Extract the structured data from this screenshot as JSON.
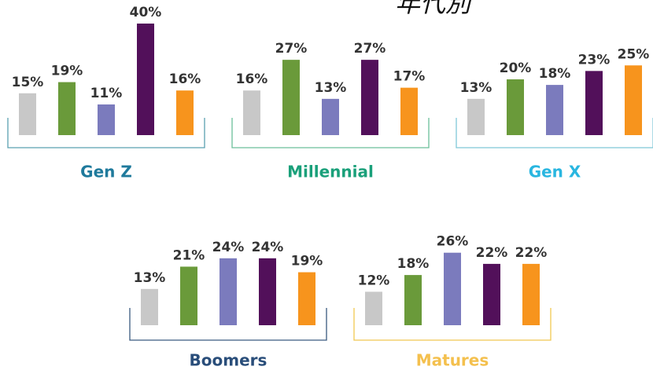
{
  "header": {
    "title": "年代別"
  },
  "chart_data": [
    {
      "type": "bar",
      "title": "Gen Z",
      "title_color": "#1f7a9c",
      "bracket_color": "#5aa0b0",
      "values": [
        15,
        19,
        11,
        40,
        16
      ],
      "value_labels": [
        "15%",
        "19%",
        "11%",
        "40%",
        "16%"
      ],
      "colors": [
        "#c8c8c8",
        "#6a9a3a",
        "#7b7bbd",
        "#52105a",
        "#f7941d"
      ]
    },
    {
      "type": "bar",
      "title": "Millennial",
      "title_color": "#1aa07a",
      "bracket_color": "#6bbf9a",
      "values": [
        16,
        27,
        13,
        27,
        17
      ],
      "value_labels": [
        "16%",
        "27%",
        "13%",
        "27%",
        "17%"
      ],
      "colors": [
        "#c8c8c8",
        "#6a9a3a",
        "#7b7bbd",
        "#52105a",
        "#f7941d"
      ]
    },
    {
      "type": "bar",
      "title": "Gen X",
      "title_color": "#29b6e0",
      "bracket_color": "#7fc8d8",
      "values": [
        13,
        20,
        18,
        23,
        25
      ],
      "value_labels": [
        "13%",
        "20%",
        "18%",
        "23%",
        "25%"
      ],
      "colors": [
        "#c8c8c8",
        "#6a9a3a",
        "#7b7bbd",
        "#52105a",
        "#f7941d"
      ]
    },
    {
      "type": "bar",
      "title": "Boomers",
      "title_color": "#2a4e7a",
      "bracket_color": "#3a5a80",
      "values": [
        13,
        21,
        24,
        24,
        19
      ],
      "value_labels": [
        "13%",
        "21%",
        "24%",
        "24%",
        "19%"
      ],
      "colors": [
        "#c8c8c8",
        "#6a9a3a",
        "#7b7bbd",
        "#52105a",
        "#f7941d"
      ]
    },
    {
      "type": "bar",
      "title": "Matures",
      "title_color": "#f4c04e",
      "bracket_color": "#f0c850",
      "values": [
        12,
        18,
        26,
        22,
        22
      ],
      "value_labels": [
        "12%",
        "18%",
        "26%",
        "22%",
        "22%"
      ],
      "colors": [
        "#c8c8c8",
        "#6a9a3a",
        "#7b7bbd",
        "#52105a",
        "#f7941d"
      ]
    }
  ]
}
